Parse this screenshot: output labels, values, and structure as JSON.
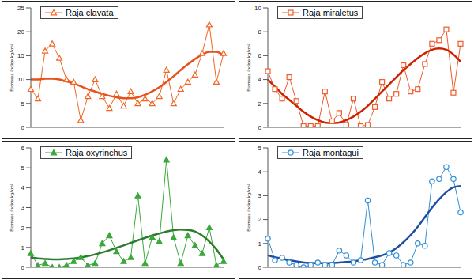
{
  "chart_data": [
    {
      "type": "line",
      "y_label": "Biomasa índice kg/km²",
      "tick_labels": "y",
      "categories": [
        null,
        null,
        null,
        null,
        null,
        null,
        null,
        null,
        null,
        null,
        null,
        null,
        null,
        null,
        null,
        null,
        null,
        null,
        null,
        null,
        null,
        null,
        null,
        null,
        null,
        null,
        null,
        null
      ],
      "ylim": [
        0,
        25
      ],
      "yticks": [
        0,
        5,
        10,
        15,
        20,
        25
      ],
      "series": [
        {
          "name": "Raja clavata",
          "color": "#f26522",
          "marker": "open-triangle",
          "line_style": "solid",
          "values": [
            8,
            6,
            16,
            17.5,
            14.5,
            10,
            9.5,
            1.5,
            6.5,
            10,
            6.5,
            4,
            7,
            4.5,
            7.5,
            5,
            6,
            5,
            6.5,
            12,
            5,
            8,
            9.5,
            11,
            15.5,
            21.5,
            9.5,
            15.5
          ]
        },
        {
          "color": "#e8501c",
          "marker": "none",
          "line_style": "smooth",
          "values": [
            10,
            10,
            10.2,
            10.2,
            10,
            9.6,
            9.2,
            8.6,
            8,
            7.5,
            7,
            6.6,
            6.3,
            6.1,
            6.1,
            6.3,
            6.8,
            7.5,
            8.4,
            9.5,
            10.7,
            12,
            13.2,
            14.3,
            15.2,
            15.8,
            15.8,
            15
          ]
        }
      ]
    },
    {
      "type": "line",
      "y_label": "Biomasa índice kg/km²",
      "tick_labels": "y",
      "categories": [
        null,
        null,
        null,
        null,
        null,
        null,
        null,
        null,
        null,
        null,
        null,
        null,
        null,
        null,
        null,
        null,
        null,
        null,
        null,
        null,
        null,
        null,
        null,
        null,
        null,
        null,
        null,
        null
      ],
      "ylim": [
        0,
        10
      ],
      "yticks": [
        0,
        2,
        4,
        6,
        8,
        10
      ],
      "series": [
        {
          "name": "Raja miraletus",
          "color": "#f05a28",
          "marker": "open-square",
          "line_style": "solid",
          "values": [
            4.7,
            3.2,
            2.4,
            4.2,
            2.2,
            0.1,
            0.1,
            0.1,
            3,
            0.5,
            1.2,
            0.2,
            2.4,
            0.1,
            0.2,
            1.7,
            3.8,
            2.4,
            2.8,
            5.2,
            3,
            3.2,
            5.3,
            7,
            7.3,
            8.2,
            2.9,
            7
          ]
        },
        {
          "color": "#cc2200",
          "marker": "none",
          "line_style": "smooth",
          "values": [
            4,
            3.4,
            2.8,
            2.3,
            1.8,
            1.3,
            0.9,
            0.6,
            0.4,
            0.35,
            0.4,
            0.6,
            0.9,
            1.3,
            1.8,
            2.4,
            3,
            3.6,
            4.2,
            4.8,
            5.3,
            5.8,
            6.2,
            6.5,
            6.6,
            6.5,
            6.1,
            5.5
          ]
        }
      ]
    },
    {
      "type": "line",
      "y_label": "Biomasa índice kg/km²",
      "tick_labels": "y",
      "categories": [
        null,
        null,
        null,
        null,
        null,
        null,
        null,
        null,
        null,
        null,
        null,
        null,
        null,
        null,
        null,
        null,
        null,
        null,
        null,
        null,
        null,
        null,
        null,
        null,
        null,
        null,
        null,
        null
      ],
      "ylim": [
        0,
        6
      ],
      "yticks": [
        0,
        1,
        2,
        3,
        4,
        5,
        6
      ],
      "series": [
        {
          "name": "Raja oxyrinchus",
          "color": "#3aa83a",
          "marker": "filled-triangle",
          "line_style": "solid",
          "values": [
            0.7,
            0.1,
            0.2,
            0,
            0,
            0.1,
            0.3,
            0.5,
            0.1,
            0.2,
            1.2,
            1.6,
            0.8,
            0.3,
            0.5,
            3.6,
            0.2,
            1.5,
            1.3,
            5.4,
            1.5,
            0.2,
            1.6,
            1.1,
            0.7,
            2,
            0.1,
            0.3
          ]
        },
        {
          "color": "#2e7d2e",
          "marker": "none",
          "line_style": "smooth",
          "values": [
            0.5,
            0.45,
            0.42,
            0.4,
            0.4,
            0.42,
            0.45,
            0.5,
            0.57,
            0.65,
            0.75,
            0.86,
            0.98,
            1.1,
            1.23,
            1.36,
            1.48,
            1.6,
            1.7,
            1.8,
            1.87,
            1.9,
            1.88,
            1.8,
            1.6,
            1.3,
            0.9,
            0.4
          ]
        }
      ]
    },
    {
      "type": "line",
      "y_label": "Biomasa índice kg/km²",
      "tick_labels": "y",
      "categories": [
        null,
        null,
        null,
        null,
        null,
        null,
        null,
        null,
        null,
        null,
        null,
        null,
        null,
        null,
        null,
        null,
        null,
        null,
        null,
        null,
        null,
        null,
        null,
        null,
        null,
        null,
        null,
        null
      ],
      "ylim": [
        0,
        5
      ],
      "yticks": [
        0,
        1,
        2,
        3,
        4,
        5
      ],
      "series": [
        {
          "name": "Raja montagui",
          "color": "#2f8fd8",
          "marker": "open-circle",
          "line_style": "solid",
          "values": [
            1.2,
            0.3,
            0.4,
            0.2,
            0.1,
            0,
            0.1,
            0.2,
            0.1,
            0.1,
            0.7,
            0.5,
            0.2,
            0.3,
            2.8,
            0.2,
            0.1,
            0.6,
            0.5,
            0.1,
            0.2,
            1,
            0.9,
            3.6,
            3.7,
            4.2,
            3.7,
            2.3
          ]
        },
        {
          "color": "#1f4fa0",
          "marker": "none",
          "line_style": "smooth",
          "values": [
            0.5,
            0.42,
            0.36,
            0.3,
            0.25,
            0.2,
            0.18,
            0.17,
            0.17,
            0.18,
            0.2,
            0.22,
            0.25,
            0.3,
            0.35,
            0.42,
            0.5,
            0.62,
            0.8,
            1.05,
            1.35,
            1.7,
            2.1,
            2.5,
            2.85,
            3.15,
            3.35,
            3.4
          ]
        }
      ]
    }
  ]
}
